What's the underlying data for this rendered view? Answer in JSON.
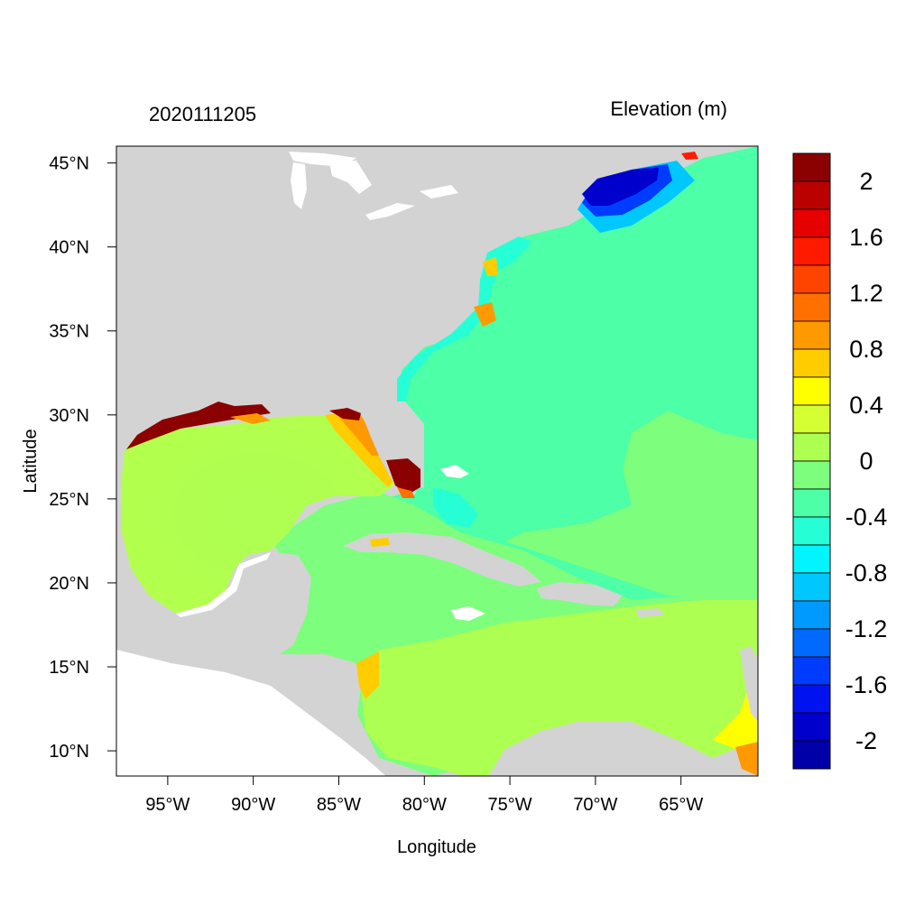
{
  "map": {
    "title_left": "2020111205",
    "title_right": "Elevation (m)",
    "x_axis_title": "Longitude",
    "y_axis_title": "Latitude",
    "lon_range": [
      -98,
      -60.5
    ],
    "lat_range": [
      8.5,
      46
    ],
    "x_ticks": [
      {
        "value": -95,
        "label": "95°W"
      },
      {
        "value": -90,
        "label": "90°W"
      },
      {
        "value": -85,
        "label": "85°W"
      },
      {
        "value": -80,
        "label": "80°W"
      },
      {
        "value": -75,
        "label": "75°W"
      },
      {
        "value": -70,
        "label": "70°W"
      },
      {
        "value": -65,
        "label": "65°W"
      }
    ],
    "y_ticks": [
      {
        "value": 45,
        "label": "45°N"
      },
      {
        "value": 40,
        "label": "40°N"
      },
      {
        "value": 35,
        "label": "35°N"
      },
      {
        "value": 30,
        "label": "30°N"
      },
      {
        "value": 25,
        "label": "25°N"
      },
      {
        "value": 20,
        "label": "20°N"
      },
      {
        "value": 15,
        "label": "15°N"
      },
      {
        "value": 10,
        "label": "10°N"
      }
    ],
    "colors": {
      "land": "#d3d3d3",
      "water_body": "#ffffff",
      "frame": "#000000"
    }
  },
  "colorbar": {
    "levels": [
      {
        "label": "2",
        "color": "#8b0000"
      },
      {
        "label": "",
        "color": "#bb0000"
      },
      {
        "label": "1.6",
        "color": "#e60000"
      },
      {
        "label": "",
        "color": "#ff1a00"
      },
      {
        "label": "1.2",
        "color": "#ff4400"
      },
      {
        "label": "",
        "color": "#ff7000"
      },
      {
        "label": "0.8",
        "color": "#ff9900"
      },
      {
        "label": "",
        "color": "#ffcc00"
      },
      {
        "label": "0.4",
        "color": "#ffff00"
      },
      {
        "label": "",
        "color": "#d6ff33"
      },
      {
        "label": "0",
        "color": "#adff52"
      },
      {
        "label": "",
        "color": "#7dff7d"
      },
      {
        "label": "-0.4",
        "color": "#4dffa6"
      },
      {
        "label": "",
        "color": "#26ffd6"
      },
      {
        "label": "-0.8",
        "color": "#00f5ff"
      },
      {
        "label": "",
        "color": "#00c8ff"
      },
      {
        "label": "-1.2",
        "color": "#009aff"
      },
      {
        "label": "",
        "color": "#006aff"
      },
      {
        "label": "-1.6",
        "color": "#003cff"
      },
      {
        "label": "",
        "color": "#0012f0"
      },
      {
        "label": "-2",
        "color": "#0000cc"
      },
      {
        "label": "",
        "color": "#0000a8"
      }
    ]
  }
}
